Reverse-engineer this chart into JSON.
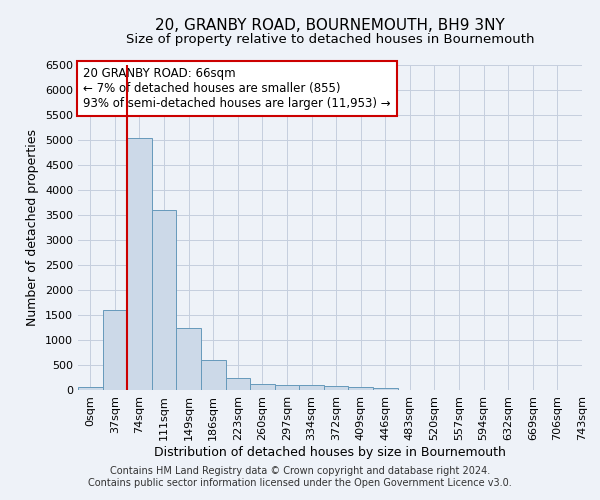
{
  "title": "20, GRANBY ROAD, BOURNEMOUTH, BH9 3NY",
  "subtitle": "Size of property relative to detached houses in Bournemouth",
  "xlabel": "Distribution of detached houses by size in Bournemouth",
  "ylabel": "Number of detached properties",
  "footer_line1": "Contains HM Land Registry data © Crown copyright and database right 2024.",
  "footer_line2": "Contains public sector information licensed under the Open Government Licence v3.0.",
  "property_label": "20 GRANBY ROAD: 66sqm",
  "annotation_line1": "← 7% of detached houses are smaller (855)",
  "annotation_line2": "93% of semi-detached houses are larger (11,953) →",
  "bar_color": "#ccd9e8",
  "bar_edge_color": "#6699bb",
  "line_color": "#cc0000",
  "annotation_box_color": "#ffffff",
  "annotation_box_edge": "#cc0000",
  "background_color": "#eef2f8",
  "bin_labels": [
    "0sqm",
    "37sqm",
    "74sqm",
    "111sqm",
    "149sqm",
    "186sqm",
    "223sqm",
    "260sqm",
    "297sqm",
    "334sqm",
    "372sqm",
    "409sqm",
    "446sqm",
    "483sqm",
    "520sqm",
    "557sqm",
    "594sqm",
    "632sqm",
    "669sqm",
    "706sqm",
    "743sqm"
  ],
  "bar_heights": [
    60,
    1600,
    5050,
    3600,
    1250,
    600,
    250,
    120,
    110,
    110,
    80,
    70,
    50,
    10,
    10,
    10,
    0,
    0,
    0,
    0
  ],
  "ylim": [
    0,
    6500
  ],
  "yticks": [
    0,
    500,
    1000,
    1500,
    2000,
    2500,
    3000,
    3500,
    4000,
    4500,
    5000,
    5500,
    6000,
    6500
  ],
  "grid_color": "#c5cede",
  "title_fontsize": 11,
  "subtitle_fontsize": 9.5,
  "axis_label_fontsize": 9,
  "tick_fontsize": 8,
  "annotation_fontsize": 8.5,
  "red_line_x": 1.5
}
